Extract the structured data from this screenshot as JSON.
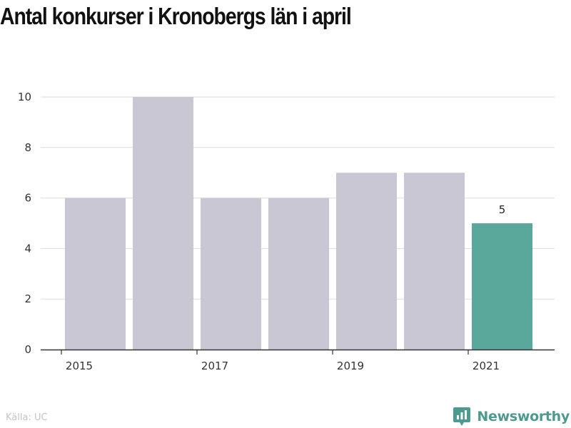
{
  "title": "Antal konkurser i Kronobergs län i april",
  "source": "Källa: UC",
  "brand": {
    "name": "Newsworthy",
    "icon": "newsworthy-logo-icon"
  },
  "colors": {
    "bar": "#c8c7d3",
    "highlight": "#5aa89c",
    "grid": "#dddddd",
    "axis": "#333333",
    "brand": "#4e9a8f"
  },
  "chart_data": {
    "type": "bar",
    "categories": [
      "2015",
      "2016",
      "2017",
      "2018",
      "2019",
      "2020",
      "2021"
    ],
    "values": [
      6,
      10,
      6,
      6,
      7,
      7,
      5
    ],
    "highlight_index": 6,
    "data_labels": [
      {
        "index": 6,
        "text": "5"
      }
    ],
    "x_tick_labels": [
      "2015",
      "2017",
      "2019",
      "2021"
    ],
    "y_ticks": [
      0,
      2,
      4,
      6,
      8,
      10
    ],
    "ylim": [
      0,
      10
    ],
    "grid": true,
    "legend": "none",
    "title": "Antal konkurser i Kronobergs län i april",
    "xlabel": "",
    "ylabel": ""
  }
}
